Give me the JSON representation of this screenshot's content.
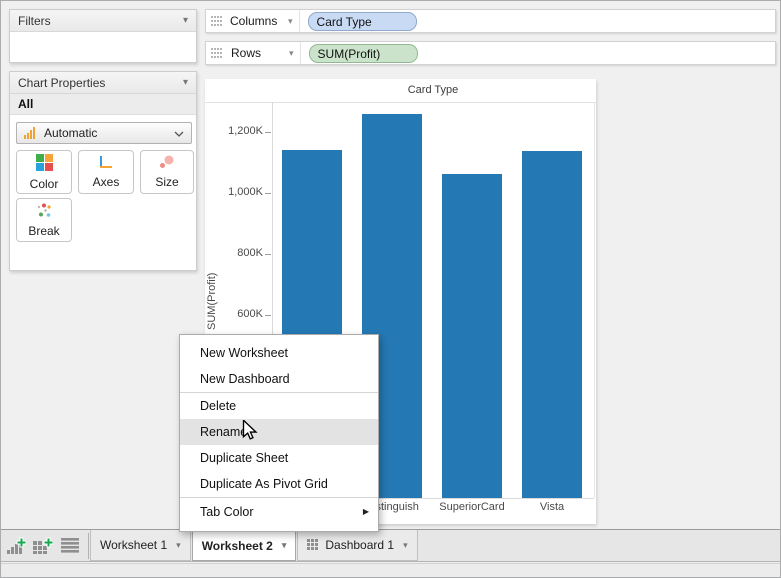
{
  "left_panel": {
    "filters": {
      "title": "Filters"
    },
    "chart_properties": {
      "title": "Chart Properties",
      "scope_label": "All",
      "chart_type_dropdown": {
        "value": "Automatic"
      },
      "buttons": [
        {
          "label": "Color"
        },
        {
          "label": "Axes"
        },
        {
          "label": "Size"
        },
        {
          "label": "Break"
        }
      ]
    }
  },
  "shelves": {
    "columns": {
      "label": "Columns",
      "pill": {
        "text": "Card Type",
        "fill": "#c9dbf4",
        "border": "#8fa8cc"
      }
    },
    "rows": {
      "label": "Rows",
      "pill": {
        "text": "SUM(Profit)",
        "fill": "#cbe3cb",
        "border": "#93b893"
      }
    }
  },
  "chart_data": {
    "type": "bar",
    "title": "Card Type",
    "xlabel": "",
    "ylabel": "SUM(Profit)",
    "categories": [
      "",
      "Distinguish",
      "SuperiorCard",
      "Vista"
    ],
    "values": [
      1141000,
      1259000,
      1062000,
      1138000
    ],
    "y_ticks": [
      {
        "value": 600000,
        "label": "600K"
      },
      {
        "value": 800000,
        "label": "800K"
      },
      {
        "value": 1000000,
        "label": "1,000K"
      },
      {
        "value": 1200000,
        "label": "1,200K"
      }
    ],
    "ylim": [
      0,
      1300000
    ],
    "grid": false,
    "legend": "none",
    "bar_color": "#2478b4"
  },
  "context_menu": {
    "items": [
      {
        "label": "New Worksheet"
      },
      {
        "label": "New Dashboard"
      },
      {
        "label": "Delete",
        "separator_before": true
      },
      {
        "label": "Rename",
        "highlighted": true
      },
      {
        "label": "Duplicate Sheet"
      },
      {
        "label": "Duplicate As Pivot Grid"
      },
      {
        "label": "Tab Color",
        "separator_before": true,
        "has_submenu": true
      }
    ]
  },
  "tab_bar": {
    "tabs": [
      {
        "label": "Worksheet 1",
        "active": false,
        "icon": "none"
      },
      {
        "label": "Worksheet 2",
        "active": true,
        "icon": "none"
      },
      {
        "label": "Dashboard 1",
        "active": false,
        "icon": "dashboard-grid"
      }
    ]
  },
  "colors": {
    "menu_highlight": "#e3e3e3",
    "accent_orange": "#efa235"
  }
}
